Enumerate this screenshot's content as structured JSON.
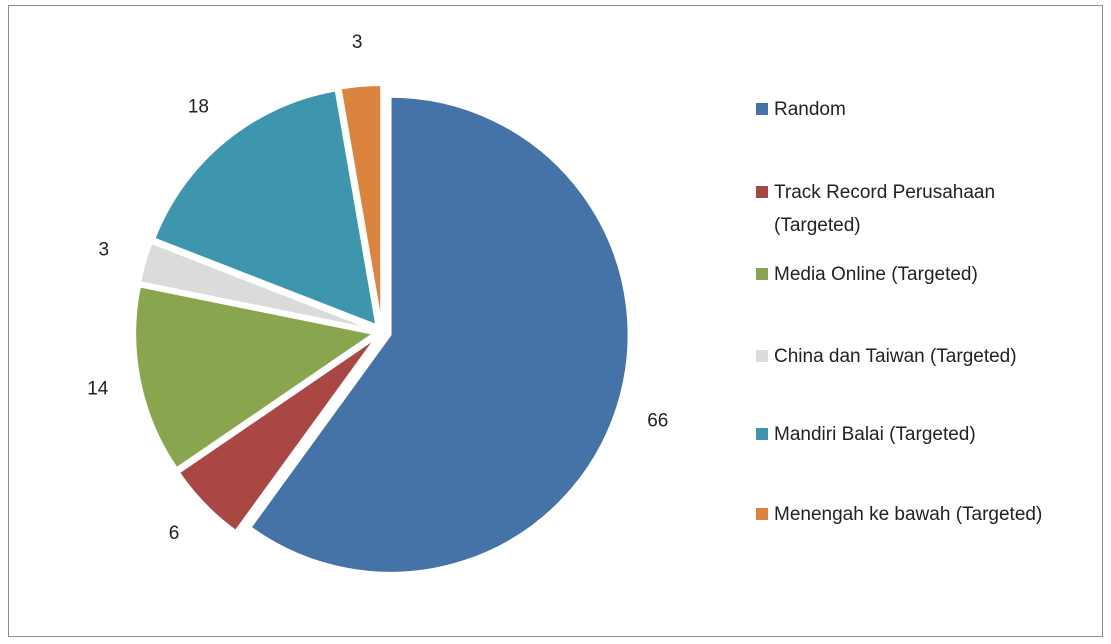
{
  "chart_data": {
    "type": "pie",
    "categories": [
      "Random",
      "Track Record Perusahaan (Targeted)",
      "Media Online (Targeted)",
      "China dan Taiwan (Targeted)",
      "Mandiri Balai (Targeted)",
      "Menengah ke bawah (Targeted)"
    ],
    "values": [
      66,
      6,
      14,
      3,
      18,
      3
    ],
    "colors": [
      "#4572a7",
      "#aa4643",
      "#89a54e",
      "#dbdbdb",
      "#3d96ae",
      "#db843d"
    ],
    "legend": "right"
  }
}
